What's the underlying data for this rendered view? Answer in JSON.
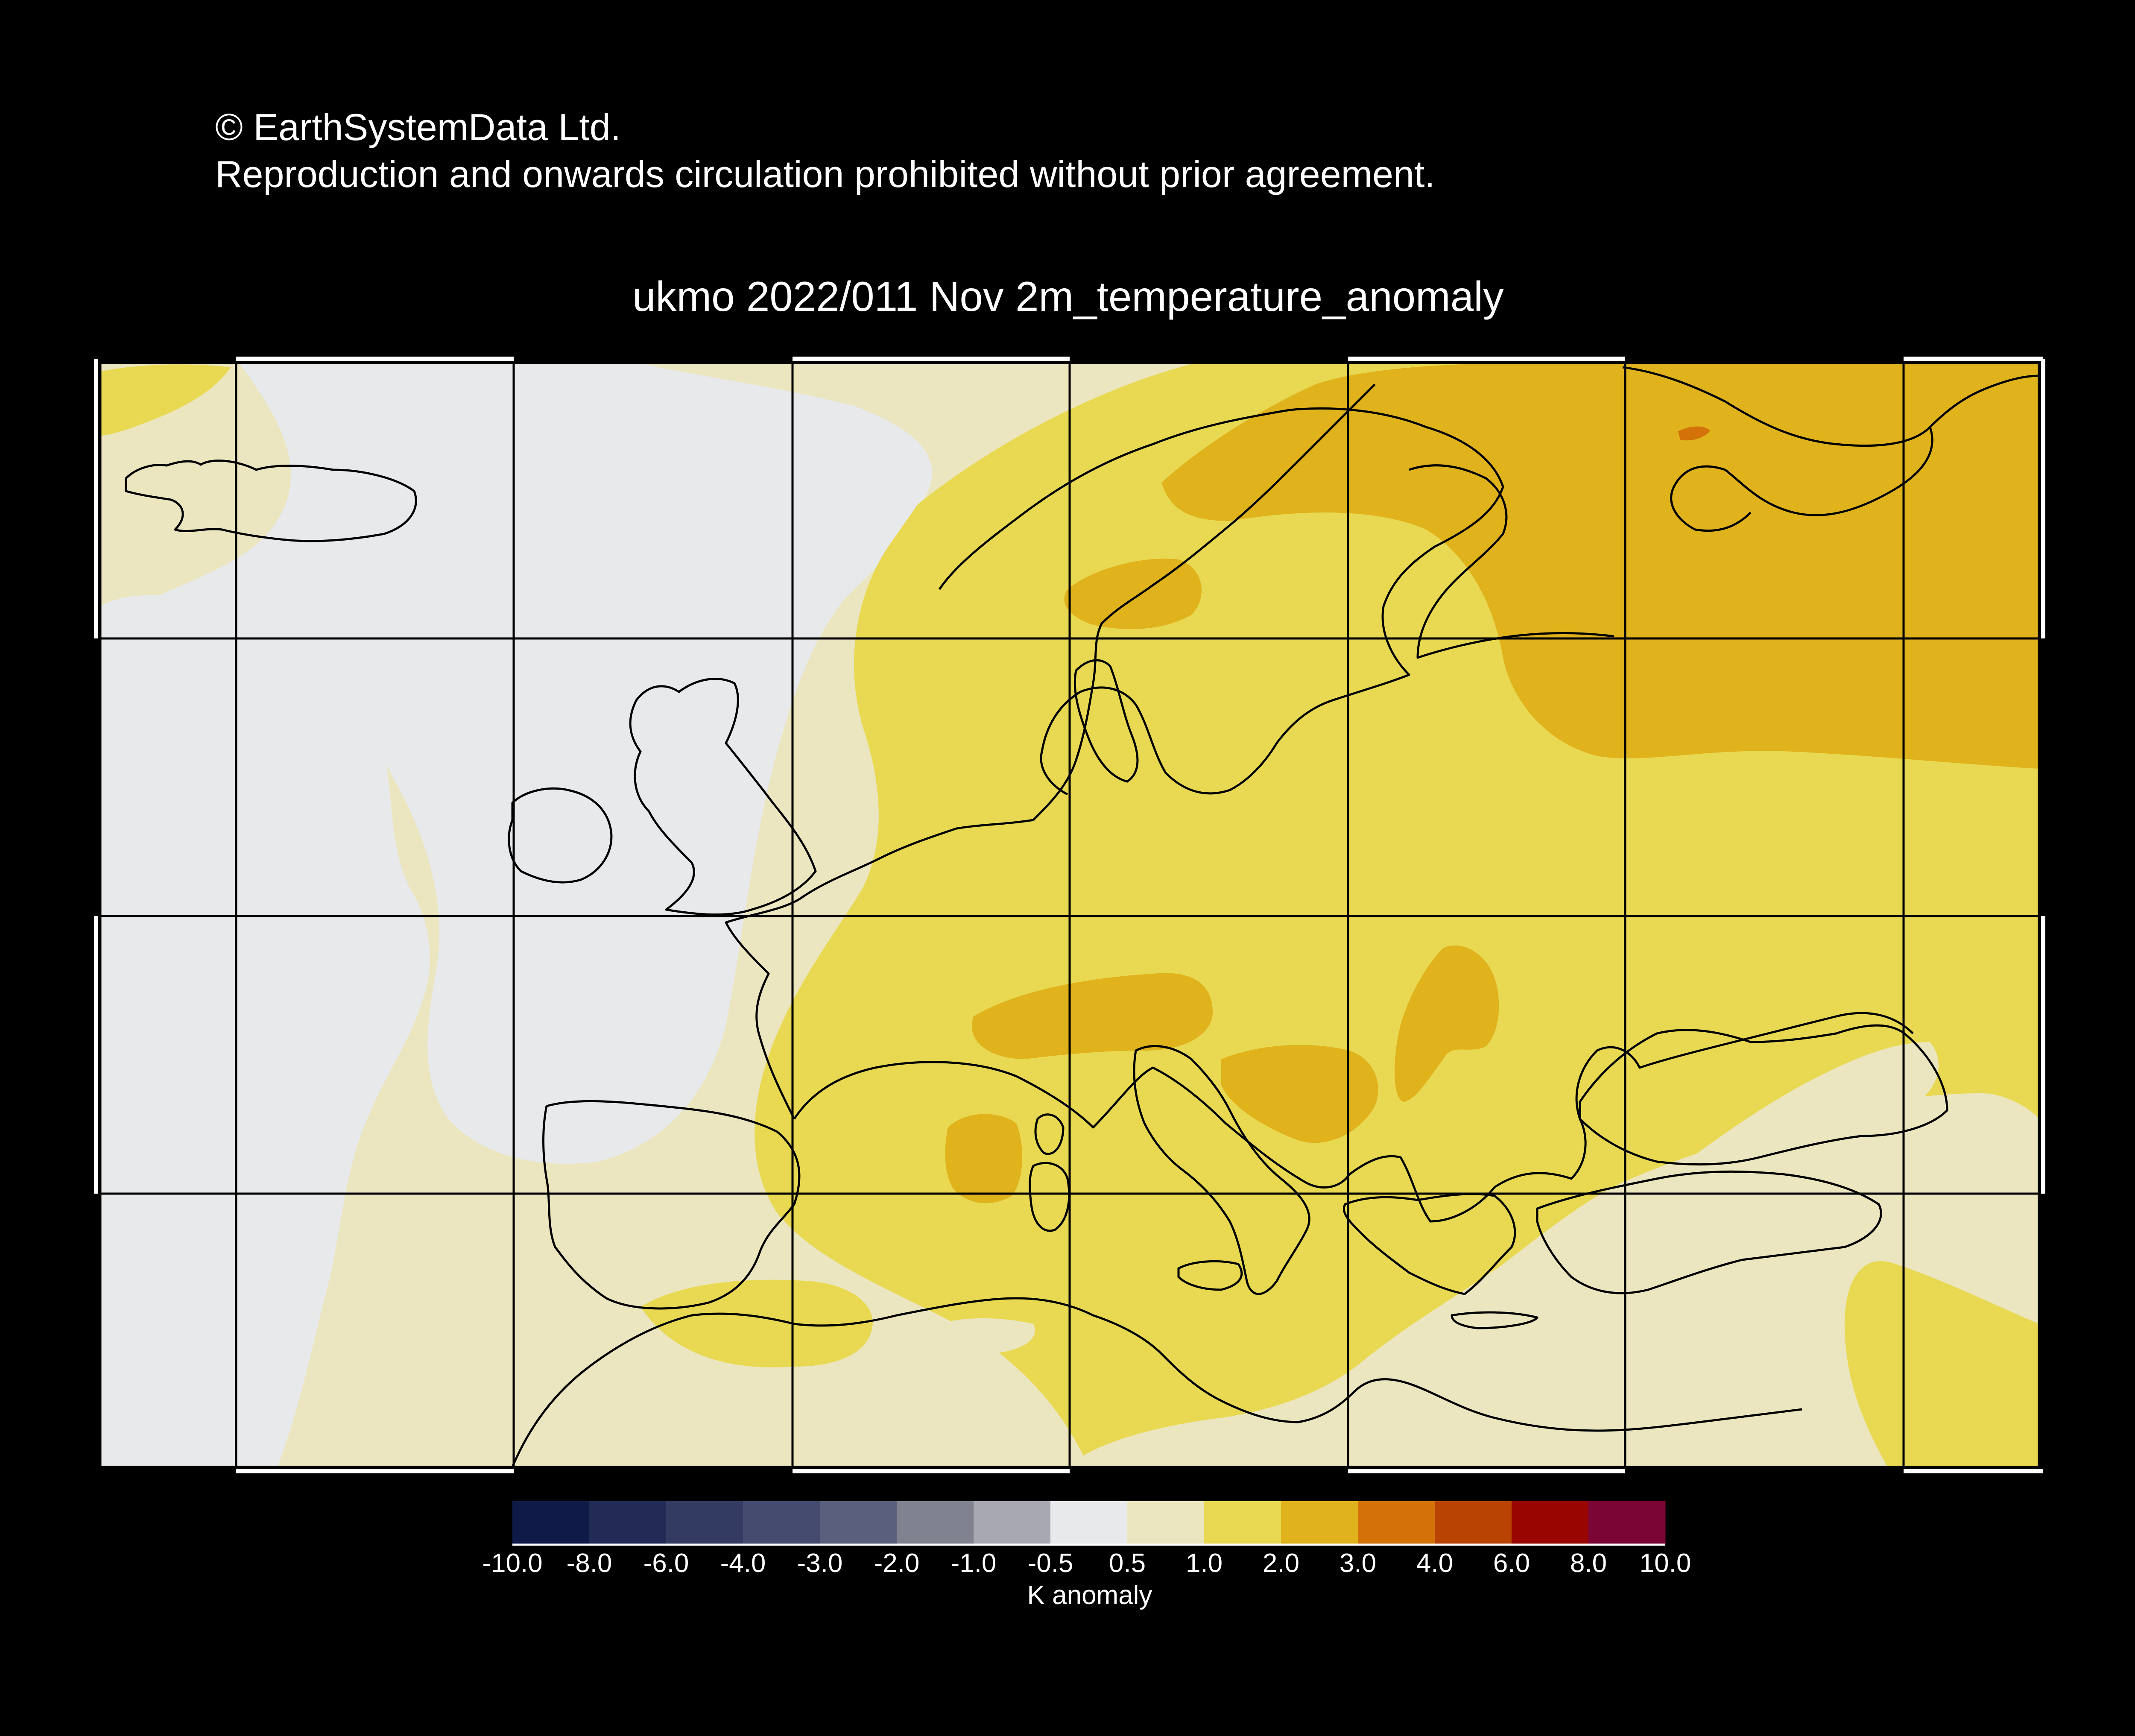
{
  "copyright": {
    "line1": "© EarthSystemData Ltd.",
    "line2": "Reproduction and onwards circulation prohibited without prior agreement."
  },
  "map": {
    "title": "ukmo 2022/011 Nov 2m_temperature_anomaly",
    "region": "Europe / North Atlantic",
    "variable": "2m temperature anomaly",
    "background": "#000000"
  },
  "colorbar": {
    "unit_label": "K anomaly",
    "ticks": [
      "-10.0",
      "-8.0",
      "-6.0",
      "-4.0",
      "-3.0",
      "-2.0",
      "-1.0",
      "-0.5",
      "0.5",
      "1.0",
      "2.0",
      "3.0",
      "4.0",
      "6.0",
      "8.0",
      "10.0"
    ],
    "colors": [
      "#101a48",
      "#212b55",
      "#333b63",
      "#454b6f",
      "#5a5f7d",
      "#80828f",
      "#a7a8b2",
      "#e8e9eb",
      "#ebe6bf",
      "#e9d952",
      "#e0b21c",
      "#d27208",
      "#b94303",
      "#990501",
      "#7b0535"
    ]
  },
  "field_colors": {
    "near_zero": "#e8e9eb",
    "warm_0_5_1": "#ebe6bf",
    "warm_1_2": "#e9d952",
    "warm_2_3": "#e0b21c",
    "warm_3_4": "#d27208"
  }
}
